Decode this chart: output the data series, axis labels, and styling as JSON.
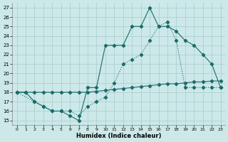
{
  "xlabel": "Humidex (Indice chaleur)",
  "xlim": [
    -0.5,
    23.5
  ],
  "ylim": [
    14.5,
    27.5
  ],
  "xticks": [
    0,
    1,
    2,
    3,
    4,
    5,
    6,
    7,
    8,
    9,
    10,
    11,
    12,
    13,
    14,
    15,
    16,
    17,
    18,
    19,
    20,
    21,
    22,
    23
  ],
  "yticks": [
    15,
    16,
    17,
    18,
    19,
    20,
    21,
    22,
    23,
    24,
    25,
    26,
    27
  ],
  "bg_color": "#cce8e8",
  "line_color": "#1a6b6b",
  "grid_color": "#a8cccc",
  "curve1_x": [
    0,
    1,
    2,
    3,
    4,
    5,
    6,
    7,
    8,
    9,
    10,
    11,
    12,
    13,
    14,
    15,
    16,
    17,
    18,
    19,
    20,
    21,
    22,
    23
  ],
  "curve1_y": [
    18,
    18,
    17,
    16.5,
    16,
    16,
    15.5,
    15,
    18.5,
    18.5,
    23,
    23,
    23,
    25,
    25,
    27,
    25,
    25,
    24.5,
    23.5,
    23,
    22,
    21,
    18.5
  ],
  "curve2_x": [
    0,
    2,
    3,
    4,
    5,
    6,
    7,
    8,
    9,
    10,
    11,
    12,
    13,
    14,
    15,
    16,
    17,
    18,
    19,
    20,
    21,
    22,
    23
  ],
  "curve2_y": [
    18,
    17,
    16.5,
    16,
    16,
    16,
    15.5,
    16.5,
    17,
    17.5,
    19,
    21,
    21.5,
    22,
    23.5,
    25,
    25.5,
    23.5,
    18.5,
    18.5,
    18.5,
    18.5,
    18.5
  ],
  "curve3_x": [
    0,
    1,
    2,
    3,
    4,
    5,
    6,
    7,
    8,
    9,
    10,
    11,
    12,
    13,
    14,
    15,
    16,
    17,
    18,
    19,
    20,
    21,
    22,
    23
  ],
  "curve3_y": [
    18,
    18,
    18,
    18,
    18,
    18,
    18,
    18,
    18,
    18.1,
    18.2,
    18.3,
    18.4,
    18.5,
    18.6,
    18.7,
    18.8,
    18.9,
    18.9,
    19.0,
    19.1,
    19.1,
    19.2,
    19.2
  ]
}
